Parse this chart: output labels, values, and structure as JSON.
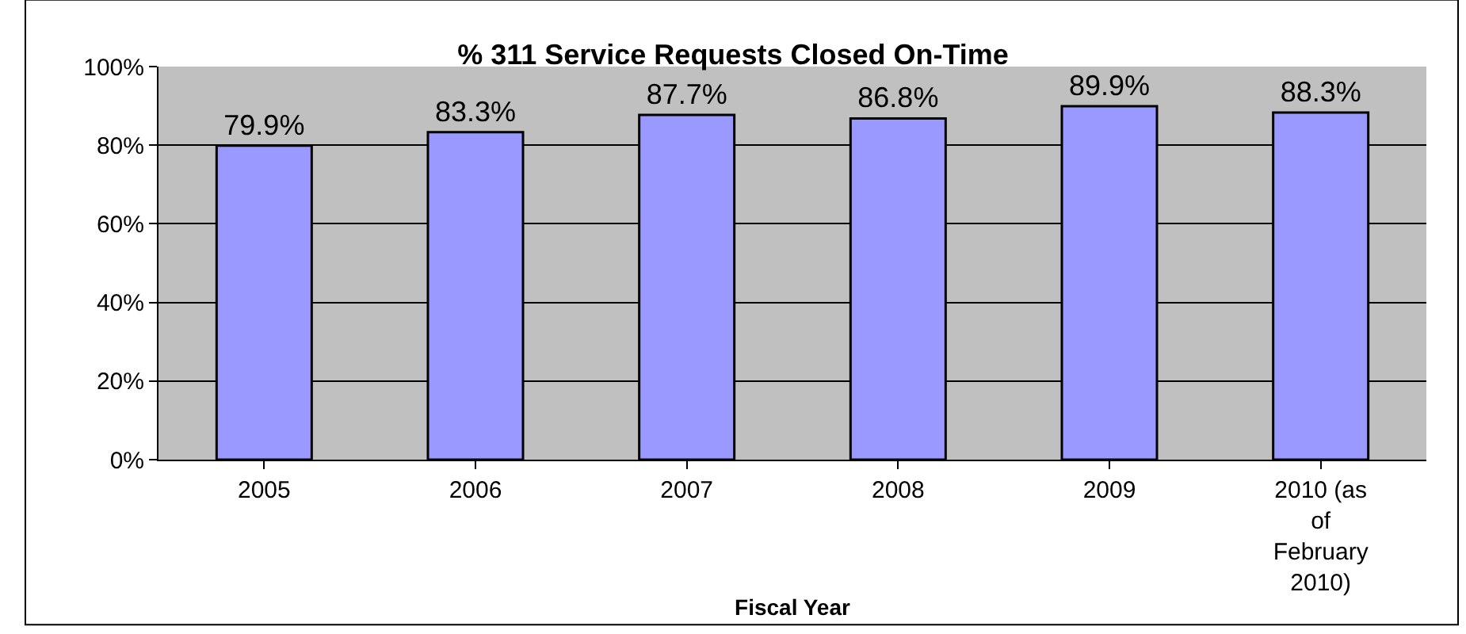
{
  "chart_data": {
    "type": "bar",
    "title": "% 311 Service Requests Closed On-Time",
    "xlabel": "Fiscal Year",
    "categories": [
      "2005",
      "2006",
      "2007",
      "2008",
      "2009",
      "2010 (as of February 2010)"
    ],
    "values": [
      79.9,
      83.3,
      87.7,
      86.8,
      89.9,
      88.3
    ],
    "value_labels": [
      "79.9%",
      "83.3%",
      "87.7%",
      "86.8%",
      "89.9%",
      "88.3%"
    ],
    "color": "#9999ff",
    "ylim": [
      0,
      100
    ],
    "yticks": [
      {
        "value": 0,
        "label": "0%"
      },
      {
        "value": 20,
        "label": "20%"
      },
      {
        "value": 40,
        "label": "40%"
      },
      {
        "value": 60,
        "label": "60%"
      },
      {
        "value": 80,
        "label": "80%"
      },
      {
        "value": 100,
        "label": "100%"
      }
    ],
    "grid": "y",
    "legend": false
  }
}
